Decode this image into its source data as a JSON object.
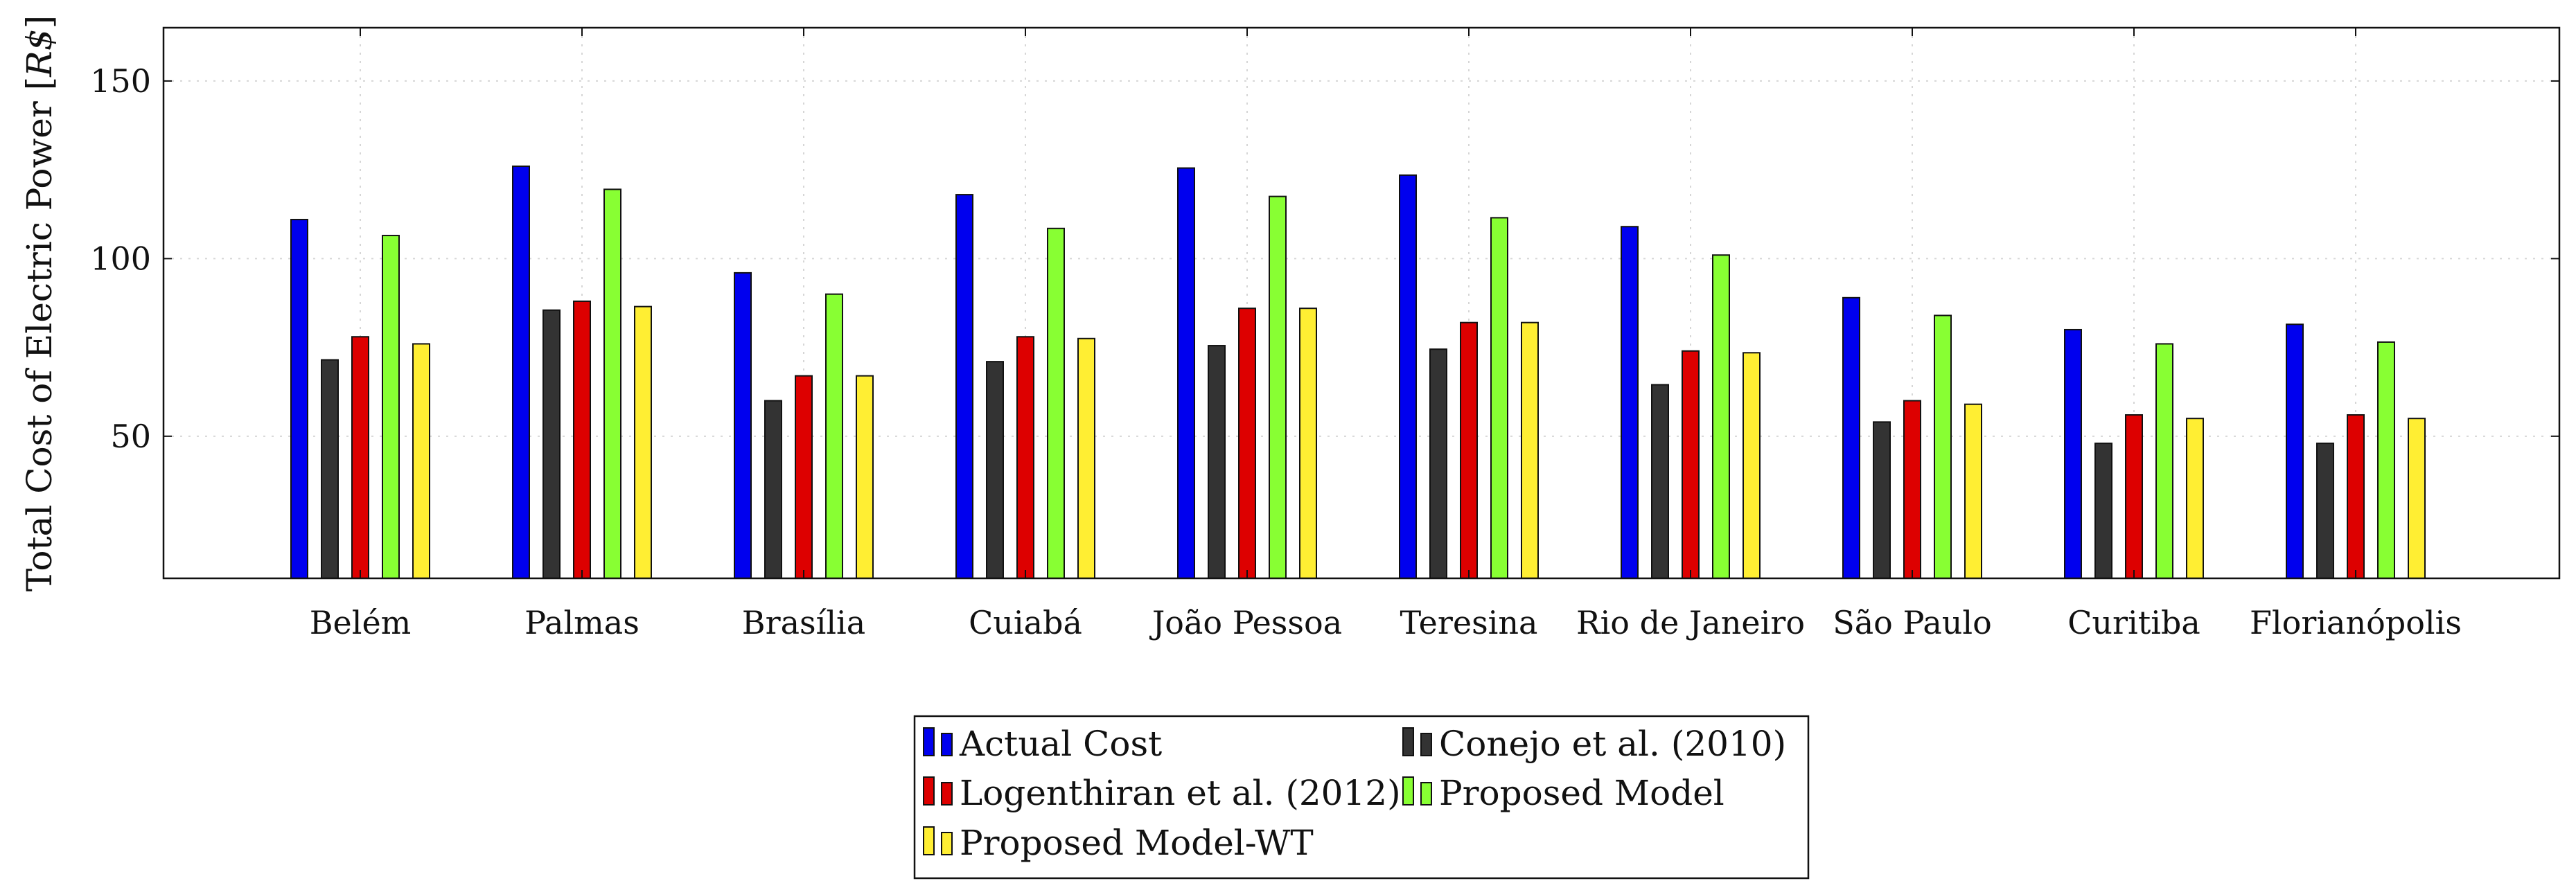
{
  "chart_data": {
    "type": "bar",
    "title": "",
    "xlabel": "",
    "ylabel": "Total Cost of Electric Power",
    "ylabel_unit": "R$",
    "ylim": [
      10,
      165
    ],
    "yticks": [
      50,
      100,
      150
    ],
    "grid": true,
    "legend_position": "bottom-center",
    "categories": [
      "Belém",
      "Palmas",
      "Brasília",
      "Cuiabá",
      "João Pessoa",
      "Teresina",
      "Rio de Janeiro",
      "São Paulo",
      "Curitiba",
      "Florianópolis"
    ],
    "series": [
      {
        "name": "Actual Cost",
        "color": "#0000ee",
        "values": [
          111,
          126,
          96,
          118,
          125.5,
          123.5,
          109,
          89,
          80,
          81.5
        ]
      },
      {
        "name": "Conejo et al. (2010)",
        "color": "#333333",
        "values": [
          71.5,
          85.5,
          60,
          71,
          75.5,
          74.5,
          64.5,
          54,
          48,
          48
        ]
      },
      {
        "name": "Logenthiran et al. (2012)",
        "color": "#dd0000",
        "values": [
          78,
          88,
          67,
          78,
          86,
          82,
          74,
          60,
          56,
          56
        ]
      },
      {
        "name": "Proposed Model",
        "color": "#88ff33",
        "values": [
          106.5,
          119.5,
          90,
          108.5,
          117.5,
          111.5,
          101,
          84,
          76,
          76.5
        ]
      },
      {
        "name": "Proposed Model-WT",
        "color": "#ffee33",
        "values": [
          76,
          86.5,
          67,
          77.5,
          86,
          82,
          73.5,
          59,
          55,
          55
        ]
      }
    ]
  }
}
